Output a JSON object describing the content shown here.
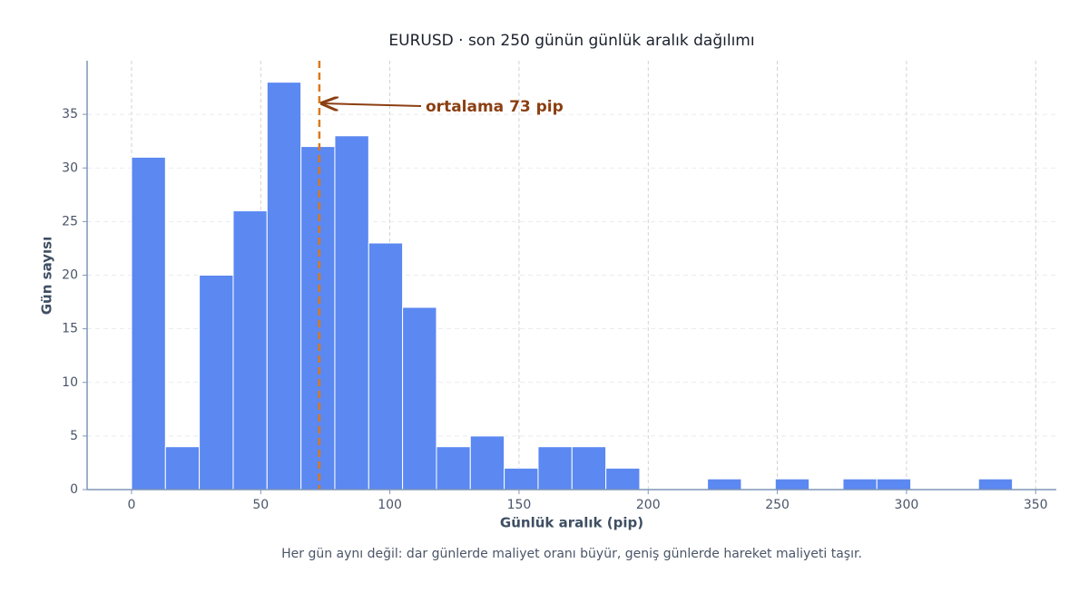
{
  "chart_data": {
    "type": "histogram",
    "title": "EURUSD · son 250 günün günlük aralık dağılımı",
    "x_label": "Günlük aralık (pip)",
    "y_label": "Gün sayısı",
    "caption": "Her gün aynı değil: dar günlerde maliyet oranı büyür, geniş günlerde hareket maliyeti taşır.",
    "bins": [
      0,
      13.12,
      26.23,
      39.35,
      52.46,
      65.58,
      78.69,
      91.81,
      104.92,
      118.04,
      131.15,
      144.27,
      157.38,
      170.5,
      183.61,
      196.73,
      209.84,
      222.96,
      236.07,
      249.19,
      262.3,
      275.42,
      288.53,
      301.65,
      314.76,
      327.88,
      341
    ],
    "values": [
      31,
      4,
      20,
      26,
      38,
      32,
      33,
      23,
      17,
      4,
      5,
      2,
      4,
      4,
      2,
      0,
      0,
      1,
      0,
      1,
      0,
      1,
      1,
      0,
      0,
      1
    ],
    "color": "#5b88f1",
    "mean_line": {
      "value": 72.7,
      "label": "ortalama 73 pip",
      "color": "#d9791a"
    },
    "xlim": [
      -17.2,
      358
    ],
    "ylim": [
      0,
      40
    ],
    "xticks": [
      0,
      50,
      100,
      150,
      200,
      250,
      300,
      350
    ],
    "yticks": [
      0,
      5,
      10,
      15,
      20,
      25,
      30,
      35
    ],
    "grid": true
  }
}
